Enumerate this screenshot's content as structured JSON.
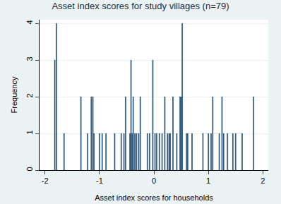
{
  "chart_data": {
    "type": "bar",
    "title": "Asset index scores for study villages (n=79)",
    "x_label": "Asset index scores for households",
    "y_label": "Frequency",
    "x": [
      -1.82,
      -1.79,
      -1.65,
      -1.34,
      -1.22,
      -1.15,
      -1.12,
      -1.1,
      -1.0,
      -0.95,
      -0.88,
      -0.72,
      -0.6,
      -0.55,
      -0.52,
      -0.44,
      -0.42,
      -0.4,
      -0.38,
      -0.35,
      -0.32,
      -0.28,
      -0.25,
      -0.12,
      -0.08,
      -0.02,
      0.02,
      0.05,
      0.1,
      0.15,
      0.2,
      0.25,
      0.28,
      0.3,
      0.35,
      0.42,
      0.48,
      0.5,
      0.52,
      0.6,
      0.62,
      0.7,
      0.9,
      1.0,
      1.05,
      1.08,
      1.2,
      1.25,
      1.28,
      1.35,
      1.45,
      1.5,
      1.62,
      1.83
    ],
    "values": [
      3,
      4,
      1,
      2,
      1,
      2,
      2,
      1,
      1,
      1,
      1,
      1,
      1,
      1,
      2,
      1,
      3,
      1,
      2,
      1,
      1,
      1,
      2,
      1,
      1,
      3,
      1,
      1,
      1,
      1,
      2,
      1,
      1,
      1,
      2,
      1,
      2,
      2,
      4,
      1,
      1,
      1,
      1,
      1,
      1,
      2,
      1,
      2,
      1,
      1,
      1,
      1,
      1,
      2
    ],
    "color": "#1a476f",
    "xlim": [
      -2.1,
      2.1
    ],
    "xticks": [
      -2,
      -1,
      0,
      1,
      2
    ],
    "ylim": [
      0,
      4.1
    ],
    "yticks": [
      0,
      1,
      2,
      3,
      4
    ],
    "grid": true
  }
}
